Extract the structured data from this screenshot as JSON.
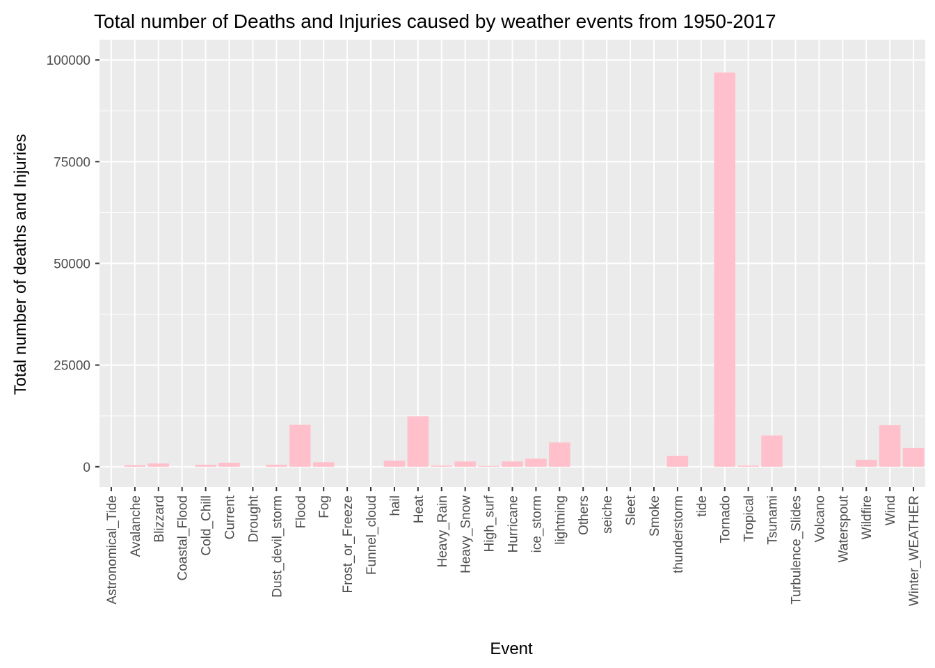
{
  "chart_data": {
    "type": "bar",
    "title": "Total number of Deaths and Injuries caused by weather events from 1950-2017",
    "xlabel": "Event",
    "ylabel": "Total number of deaths and Injuries",
    "ylim": [
      -5000,
      105000
    ],
    "yticks": [
      0,
      25000,
      50000,
      75000,
      100000
    ],
    "yticklabels": [
      "0",
      "25000",
      "50000",
      "75000",
      "100000"
    ],
    "grid": true,
    "categories": [
      "Astronomical_Tide",
      "Avalanche",
      "Blizzard",
      "Coastal_Flood",
      "Cold_Chill",
      "Current",
      "Drought",
      "Dust_devil_storm",
      "Flood",
      "Fog",
      "Frost_or_Freeze",
      "Funnel_cloud",
      "hail",
      "Heat",
      "Heavy_Rain",
      "Heavy_Snow",
      "High_surf",
      "Hurricane",
      "ice_storm",
      "lightning",
      "Others",
      "seiche",
      "Sleet",
      "Smoke",
      "thunderstorm",
      "tide",
      "Tornado",
      "Tropical",
      "Tsunami",
      "Turbulence_Slides",
      "Volcano",
      "Waterspout",
      "Wildfire",
      "Wind",
      "Winter_WEATHER"
    ],
    "values": [
      10,
      400,
      800,
      10,
      500,
      1000,
      10,
      500,
      10300,
      1100,
      10,
      10,
      1500,
      12400,
      300,
      1300,
      200,
      1300,
      2000,
      6000,
      10,
      10,
      10,
      10,
      2700,
      10,
      96900,
      300,
      7700,
      10,
      10,
      10,
      1700,
      10200,
      4600
    ],
    "bar_color": "#FFC0CB",
    "panel_color": "#EBEBEB",
    "grid_color": "#FFFFFF"
  }
}
